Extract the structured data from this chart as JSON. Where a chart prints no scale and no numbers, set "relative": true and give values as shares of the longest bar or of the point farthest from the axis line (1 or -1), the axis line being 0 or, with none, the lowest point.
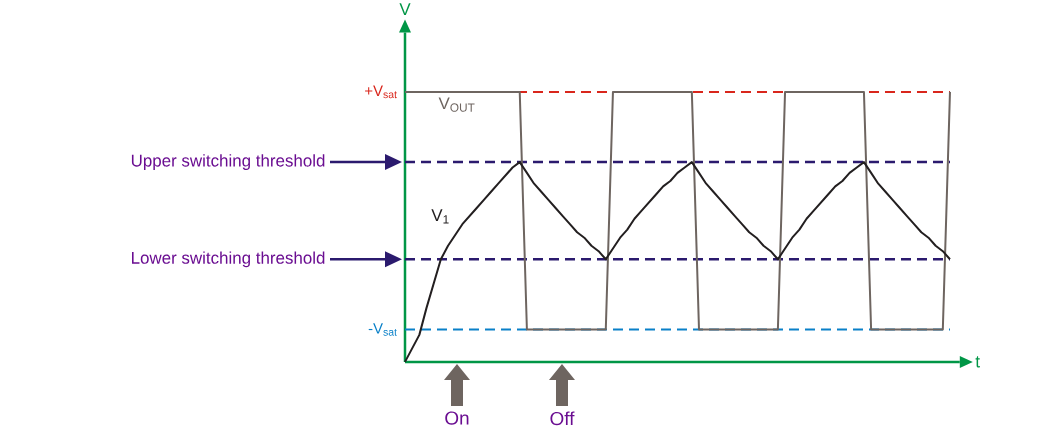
{
  "chart_data": {
    "type": "line",
    "relative": true,
    "tick_labels": false,
    "marker": "none",
    "line_style": "solid",
    "ylabel": "V",
    "xlabel": "t",
    "categories": [
      null,
      null,
      null,
      null,
      null,
      null,
      null,
      null,
      null,
      null,
      null,
      null,
      null,
      null,
      null,
      null,
      null,
      null,
      null,
      null,
      null,
      null,
      null,
      null,
      null,
      null,
      null,
      null,
      null,
      null,
      null,
      null,
      null,
      null,
      null,
      null,
      null,
      null,
      null,
      null,
      null,
      null,
      null,
      null,
      null,
      null,
      null,
      null,
      null,
      null,
      null,
      null,
      null,
      null,
      null,
      null,
      null,
      null,
      null,
      null,
      null,
      null,
      null,
      null,
      null,
      null,
      null,
      null,
      null,
      null,
      null,
      null,
      null,
      null,
      null,
      null,
      null
    ],
    "series": [
      {
        "name": "V$_{OUT}$",
        "color": "#6e6560",
        "values": [
          1,
          1,
          1,
          1,
          1,
          1,
          1,
          1,
          1,
          1,
          1,
          1,
          1,
          1,
          1,
          1,
          1,
          0.12,
          0.12,
          0.12,
          0.12,
          0.12,
          0.12,
          0.12,
          0.12,
          0.12,
          0.12,
          0.12,
          0.12,
          1,
          1,
          1,
          1,
          1,
          1,
          1,
          1,
          1,
          1,
          1,
          1,
          0.12,
          0.12,
          0.12,
          0.12,
          0.12,
          0.12,
          0.12,
          0.12,
          0.12,
          0.12,
          0.12,
          0.12,
          1,
          1,
          1,
          1,
          1,
          1,
          1,
          1,
          1,
          1,
          1,
          1,
          0.12,
          0.12,
          0.12,
          0.12,
          0.12,
          0.12,
          0.12,
          0.12,
          0.12,
          0.12,
          0.12,
          1
        ]
      },
      {
        "name": "V$_{1}$",
        "color": "#231f20",
        "values": [
          0,
          0.05,
          0.1,
          0.2,
          0.29,
          0.38,
          0.43,
          0.47,
          0.51,
          0.54,
          0.57,
          0.6,
          0.63,
          0.66,
          0.69,
          0.72,
          0.74,
          0.7,
          0.66,
          0.63,
          0.6,
          0.57,
          0.54,
          0.51,
          0.48,
          0.46,
          0.43,
          0.41,
          0.38,
          0.42,
          0.46,
          0.49,
          0.53,
          0.56,
          0.59,
          0.62,
          0.65,
          0.67,
          0.7,
          0.72,
          0.74,
          0.7,
          0.66,
          0.63,
          0.6,
          0.57,
          0.54,
          0.51,
          0.48,
          0.46,
          0.43,
          0.41,
          0.38,
          0.42,
          0.46,
          0.49,
          0.53,
          0.56,
          0.59,
          0.62,
          0.65,
          0.67,
          0.7,
          0.72,
          0.74,
          0.7,
          0.66,
          0.63,
          0.6,
          0.57,
          0.54,
          0.51,
          0.48,
          0.46,
          0.43,
          0.41,
          0.38
        ]
      }
    ],
    "ref_lines": [
      {
        "axis": "y",
        "value": 1,
        "label": "+V$_{sat}$",
        "color": "#d9261c",
        "line_style": "dashed"
      },
      {
        "axis": "y",
        "value": 0.74,
        "label": "Upper switching threshold",
        "color": "#2b1a6e",
        "line_style": "dashed"
      },
      {
        "axis": "y",
        "value": 0.38,
        "label": "Lower switching threshold",
        "color": "#2b1a6e",
        "line_style": "dashed"
      },
      {
        "axis": "y",
        "value": 0.12,
        "label": "-V$_{sat}$",
        "color": "#0a80c8",
        "line_style": "dashed"
      }
    ],
    "annotations": [
      "On",
      "Off"
    ]
  }
}
